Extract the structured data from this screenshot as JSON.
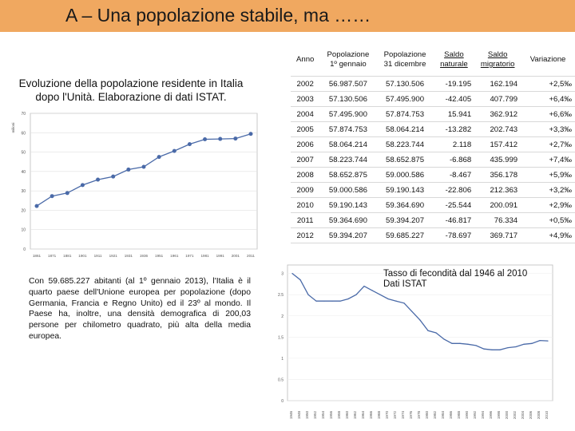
{
  "header": {
    "title": "A – Una popolazione stabile, ma ……",
    "bar_color": "#f0a860"
  },
  "left": {
    "subtitle_line1": "Evoluzione della popolazione residente in Italia",
    "subtitle_line2": "dopo l'Unità. Elaborazione di dati ISTAT.",
    "paragraph": "Con 59.685.227 abitanti (al 1º gennaio 2013), l'Italia è il quarto paese dell'Unione europea per popolazione (dopo Germania, Francia e Regno Unito) ed il 23º al mondo. Il Paese ha, inoltre, una densità demografica di 200,03 persone per chilometro quadrato, più alta della media europea."
  },
  "table": {
    "headers": {
      "anno": "Anno",
      "pop_gen_1": "Popolazione",
      "pop_gen_2": "1º gennaio",
      "pop_dic_1": "Popolazione",
      "pop_dic_2": "31 dicembre",
      "saldo_nat_1": "Saldo",
      "saldo_nat_2": "naturale",
      "saldo_mig_1": "Saldo",
      "saldo_mig_2": "migratorio",
      "variazione": "Variazione"
    },
    "rows": [
      {
        "anno": "2002",
        "pop_gen": "56.987.507",
        "pop_dic": "57.130.506",
        "saldo_nat": "-19.195",
        "saldo_mig": "162.194",
        "var": "+2,5‰"
      },
      {
        "anno": "2003",
        "pop_gen": "57.130.506",
        "pop_dic": "57.495.900",
        "saldo_nat": "-42.405",
        "saldo_mig": "407.799",
        "var": "+6,4‰"
      },
      {
        "anno": "2004",
        "pop_gen": "57.495.900",
        "pop_dic": "57.874.753",
        "saldo_nat": "15.941",
        "saldo_mig": "362.912",
        "var": "+6,6‰"
      },
      {
        "anno": "2005",
        "pop_gen": "57.874.753",
        "pop_dic": "58.064.214",
        "saldo_nat": "-13.282",
        "saldo_mig": "202.743",
        "var": "+3,3‰"
      },
      {
        "anno": "2006",
        "pop_gen": "58.064.214",
        "pop_dic": "58.223.744",
        "saldo_nat": "2.118",
        "saldo_mig": "157.412",
        "var": "+2,7‰"
      },
      {
        "anno": "2007",
        "pop_gen": "58.223.744",
        "pop_dic": "58.652.875",
        "saldo_nat": "-6.868",
        "saldo_mig": "435.999",
        "var": "+7,4‰"
      },
      {
        "anno": "2008",
        "pop_gen": "58.652.875",
        "pop_dic": "59.000.586",
        "saldo_nat": "-8.467",
        "saldo_mig": "356.178",
        "var": "+5,9‰"
      },
      {
        "anno": "2009",
        "pop_gen": "59.000.586",
        "pop_dic": "59.190.143",
        "saldo_nat": "-22.806",
        "saldo_mig": "212.363",
        "var": "+3,2‰"
      },
      {
        "anno": "2010",
        "pop_gen": "59.190.143",
        "pop_dic": "59.364.690",
        "saldo_nat": "-25.544",
        "saldo_mig": "200.091",
        "var": "+2,9‰"
      },
      {
        "anno": "2011",
        "pop_gen": "59.364.690",
        "pop_dic": "59.394.207",
        "saldo_nat": "-46.817",
        "saldo_mig": "76.334",
        "var": "+0,5‰"
      },
      {
        "anno": "2012",
        "pop_gen": "59.394.207",
        "pop_dic": "59.685.227",
        "saldo_nat": "-78.697",
        "saldo_mig": "369.717",
        "var": "+4,9‰"
      }
    ]
  },
  "chart_data": [
    {
      "type": "line",
      "title": "",
      "ylabel": "milioni",
      "x": [
        "1861",
        "1871",
        "1881",
        "1901",
        "1911",
        "1921",
        "1931",
        "1936",
        "1951",
        "1961",
        "1971",
        "1981",
        "1991",
        "2001",
        "2011"
      ],
      "values": [
        22.2,
        27.3,
        28.9,
        33.0,
        35.8,
        37.4,
        41.0,
        42.4,
        47.5,
        50.6,
        54.1,
        56.6,
        56.8,
        57.0,
        59.4
      ],
      "yticks": [
        "0",
        "10",
        "20",
        "30",
        "40",
        "50",
        "60",
        "70"
      ],
      "ylim": [
        0,
        70
      ],
      "line_color": "#4a6aa8"
    },
    {
      "type": "line",
      "title_line1": "Tasso di fecondità dal 1946 al 2010",
      "title_line2": "Dati ISTAT",
      "yticks": [
        "0",
        "0.5",
        "1",
        "1.5",
        "2",
        "2.5",
        "3"
      ],
      "ylim": [
        0,
        3.2
      ],
      "x": [
        "1946",
        "1948",
        "1950",
        "1952",
        "1954",
        "1956",
        "1958",
        "1960",
        "1962",
        "1964",
        "1966",
        "1968",
        "1970",
        "1972",
        "1974",
        "1976",
        "1978",
        "1980",
        "1982",
        "1984",
        "1986",
        "1988",
        "1990",
        "1992",
        "1994",
        "1996",
        "1998",
        "2000",
        "2002",
        "2004",
        "2006",
        "2008",
        "2010"
      ],
      "values": [
        3.0,
        2.85,
        2.5,
        2.35,
        2.35,
        2.35,
        2.35,
        2.4,
        2.5,
        2.7,
        2.6,
        2.5,
        2.4,
        2.35,
        2.3,
        2.1,
        1.9,
        1.65,
        1.6,
        1.45,
        1.35,
        1.35,
        1.33,
        1.3,
        1.22,
        1.2,
        1.2,
        1.25,
        1.27,
        1.33,
        1.35,
        1.42,
        1.41
      ],
      "line_color": "#4a6aa8"
    }
  ]
}
